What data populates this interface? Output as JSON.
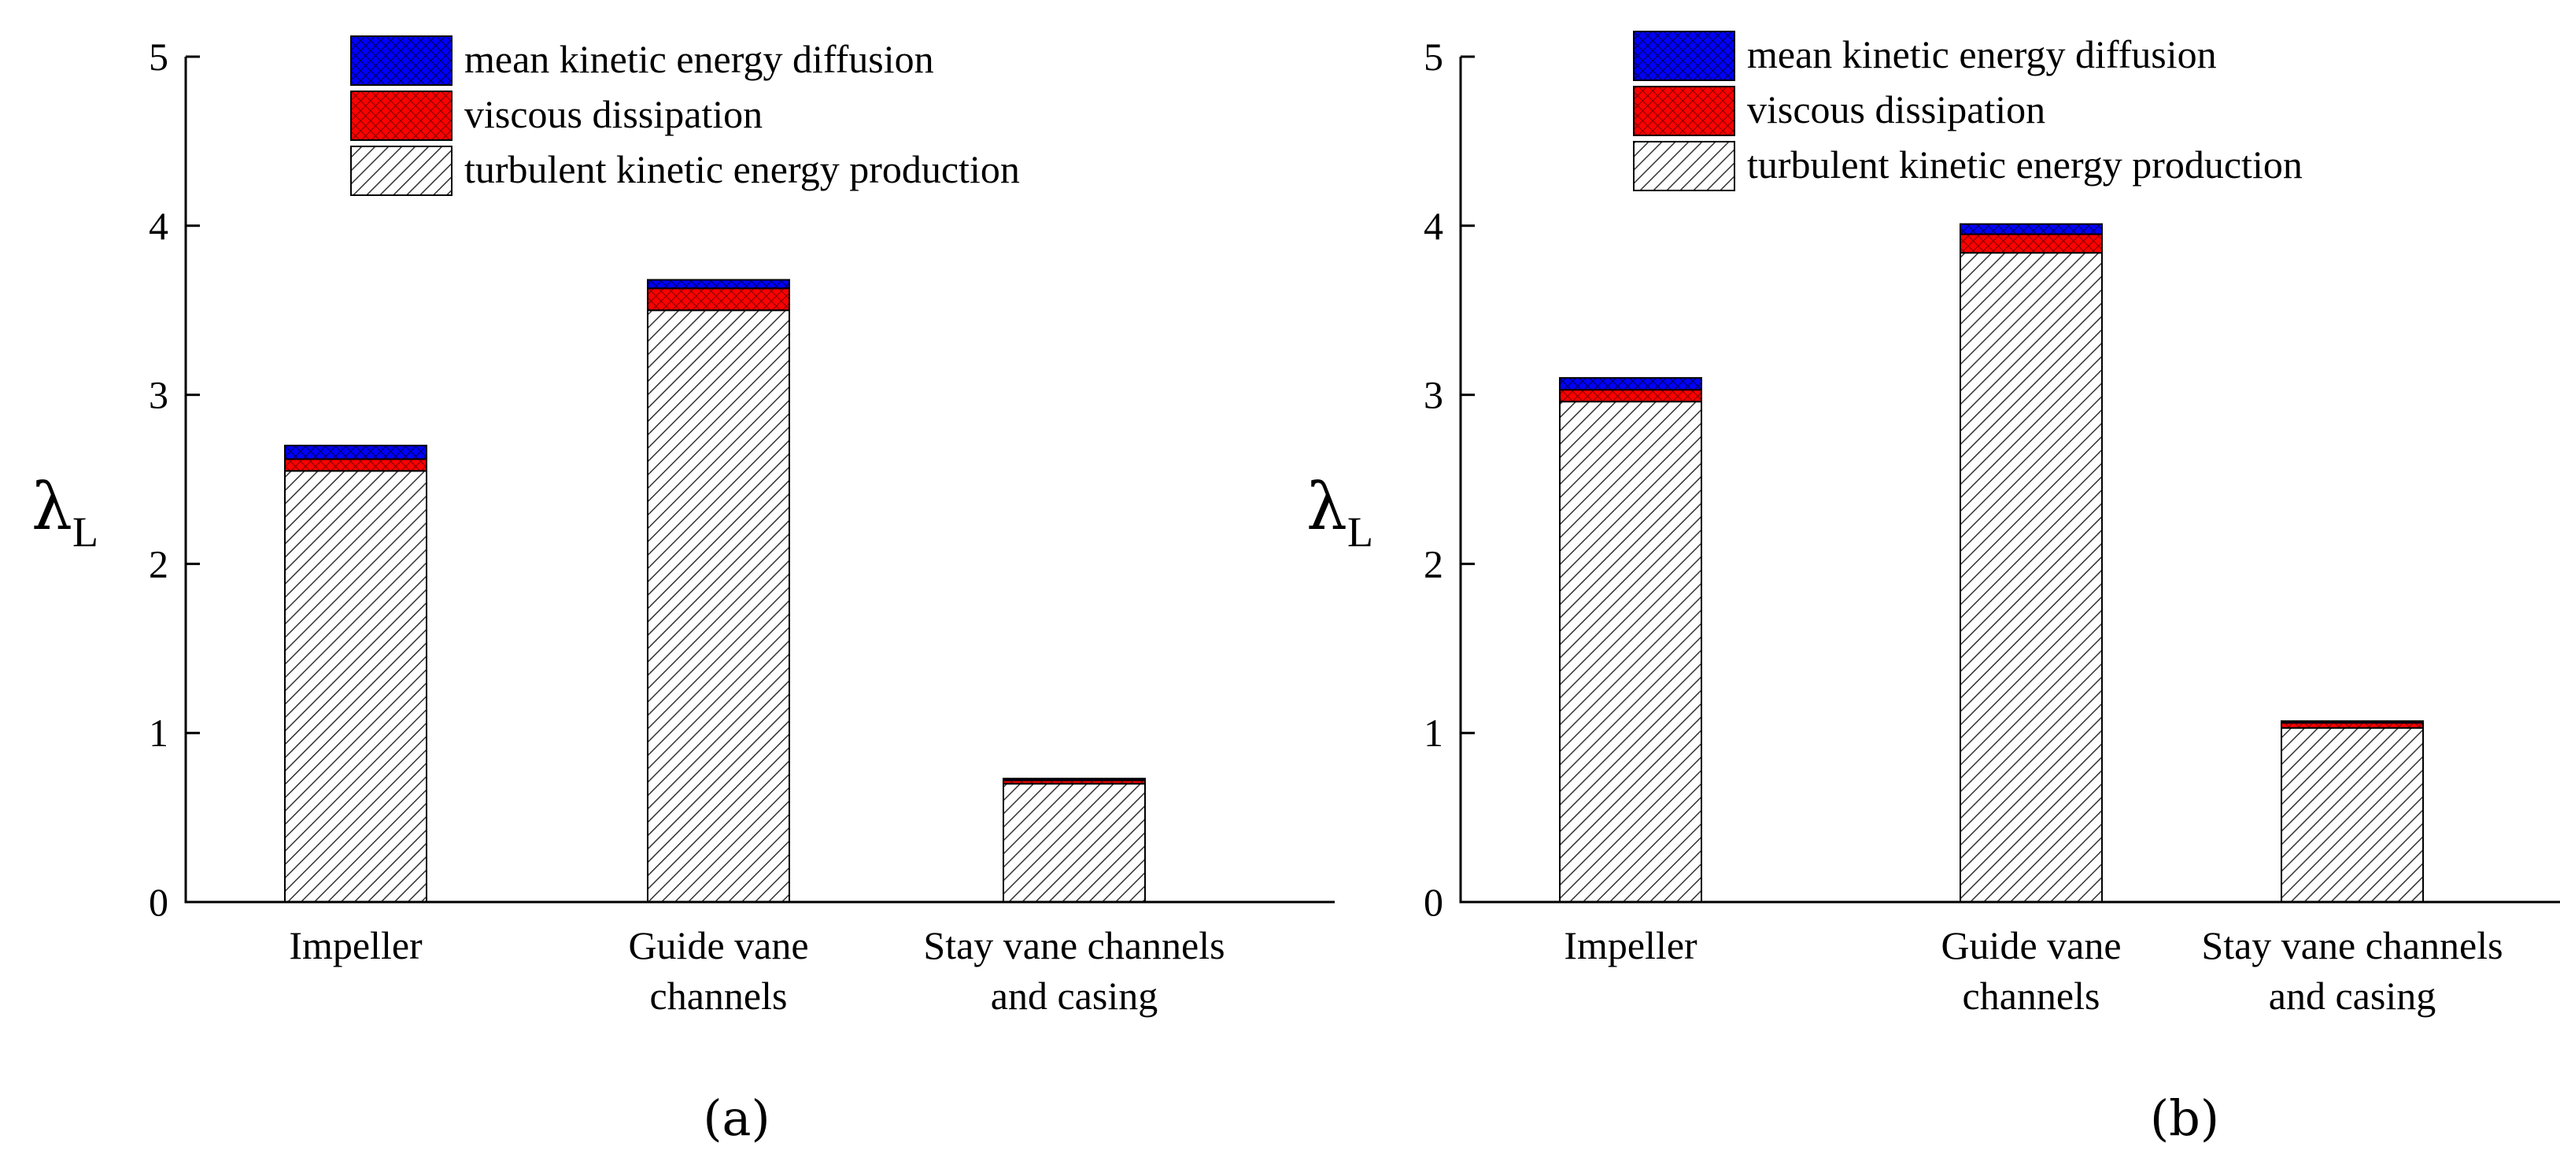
{
  "chart_data": [
    {
      "type": "bar",
      "stacked": true,
      "panel_label": "(a)",
      "ylabel": "λ",
      "ylabel_subscript": "L",
      "ylim": [
        0,
        5
      ],
      "yticks": [
        "0",
        "1",
        "2",
        "3",
        "4",
        "5"
      ],
      "categories": [
        [
          "Impeller"
        ],
        [
          "Guide vane",
          "channels"
        ],
        [
          "Stay vane channels",
          "and casing"
        ]
      ],
      "series": [
        {
          "name": "turbulent kinetic energy production",
          "color": "#ffffff",
          "pattern": "hatch-diagonal",
          "values": [
            2.55,
            3.5,
            0.7
          ]
        },
        {
          "name": "viscous dissipation",
          "color": "#ff0000",
          "pattern": "crosshatch",
          "values": [
            0.07,
            0.13,
            0.02
          ]
        },
        {
          "name": "mean kinetic energy diffusion",
          "color": "#0000ff",
          "pattern": "crosshatch",
          "values": [
            0.08,
            0.05,
            0.01
          ]
        }
      ],
      "legend_position": "top-center"
    },
    {
      "type": "bar",
      "stacked": true,
      "panel_label": "(b)",
      "ylabel": "λ",
      "ylabel_subscript": "L",
      "ylim": [
        0,
        5
      ],
      "yticks": [
        "0",
        "1",
        "2",
        "3",
        "4",
        "5"
      ],
      "categories": [
        [
          "Impeller"
        ],
        [
          "Guide vane",
          "channels"
        ],
        [
          "Stay vane channels",
          "and casing"
        ]
      ],
      "series": [
        {
          "name": "turbulent kinetic energy production",
          "color": "#ffffff",
          "pattern": "hatch-diagonal",
          "values": [
            2.96,
            3.84,
            1.03
          ]
        },
        {
          "name": "viscous dissipation",
          "color": "#ff0000",
          "pattern": "crosshatch",
          "values": [
            0.07,
            0.11,
            0.03
          ]
        },
        {
          "name": "mean kinetic energy diffusion",
          "color": "#0000ff",
          "pattern": "crosshatch",
          "values": [
            0.07,
            0.06,
            0.01
          ]
        }
      ],
      "legend_position": "top-center"
    }
  ]
}
